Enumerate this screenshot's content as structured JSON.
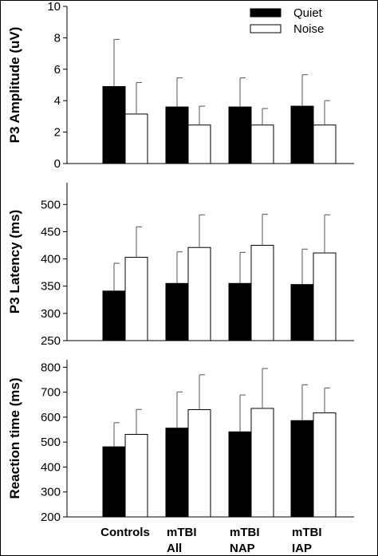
{
  "chart_data": [
    {
      "type": "bar",
      "ylabel": "P3 Amplitude (uV)",
      "ylim": [
        0,
        10
      ],
      "yticks": [
        0,
        2,
        4,
        6,
        8,
        10
      ],
      "categories": [
        "Controls",
        "mTBI All",
        "mTBI NAP",
        "mTBI IAP"
      ],
      "legend": "top-right",
      "series": [
        {
          "name": "Quiet",
          "color": "#000000",
          "values": [
            4.9,
            3.6,
            3.6,
            3.65
          ],
          "error": [
            3.0,
            1.85,
            1.85,
            2.0
          ]
        },
        {
          "name": "Noise",
          "color": "#ffffff",
          "values": [
            3.15,
            2.45,
            2.45,
            2.45
          ],
          "error": [
            2.0,
            1.2,
            1.05,
            1.55
          ]
        }
      ]
    },
    {
      "type": "bar",
      "ylabel": "P3 Latency (ms)",
      "ylim": [
        250,
        540
      ],
      "yticks": [
        250,
        300,
        350,
        400,
        450,
        500
      ],
      "categories": [
        "Controls",
        "mTBI All",
        "mTBI NAP",
        "mTBI IAP"
      ],
      "series": [
        {
          "name": "Quiet",
          "color": "#000000",
          "values": [
            341,
            355,
            355,
            353
          ],
          "error": [
            51,
            58,
            57,
            65
          ]
        },
        {
          "name": "Noise",
          "color": "#ffffff",
          "values": [
            403,
            421,
            425,
            411
          ],
          "error": [
            56,
            60,
            57,
            70
          ]
        }
      ]
    },
    {
      "type": "bar",
      "ylabel": "Reaction time (ms)",
      "ylim": [
        200,
        830
      ],
      "yticks": [
        200,
        300,
        400,
        500,
        600,
        700,
        800
      ],
      "categories": [
        "Controls",
        "mTBI All",
        "mTBI NAP",
        "mTBI IAP"
      ],
      "series": [
        {
          "name": "Quiet",
          "color": "#000000",
          "values": [
            481,
            556,
            541,
            586
          ],
          "error": [
            97,
            145,
            148,
            144
          ]
        },
        {
          "name": "Noise",
          "color": "#ffffff",
          "values": [
            531,
            630,
            635,
            617
          ],
          "error": [
            100,
            140,
            160,
            100
          ]
        }
      ]
    }
  ],
  "x_labels": [
    {
      "line1": "Controls",
      "line2": ""
    },
    {
      "line1": "mTBI",
      "line2": "All"
    },
    {
      "line1": "mTBI",
      "line2": "NAP"
    },
    {
      "line1": "mTBI",
      "line2": "IAP"
    }
  ]
}
